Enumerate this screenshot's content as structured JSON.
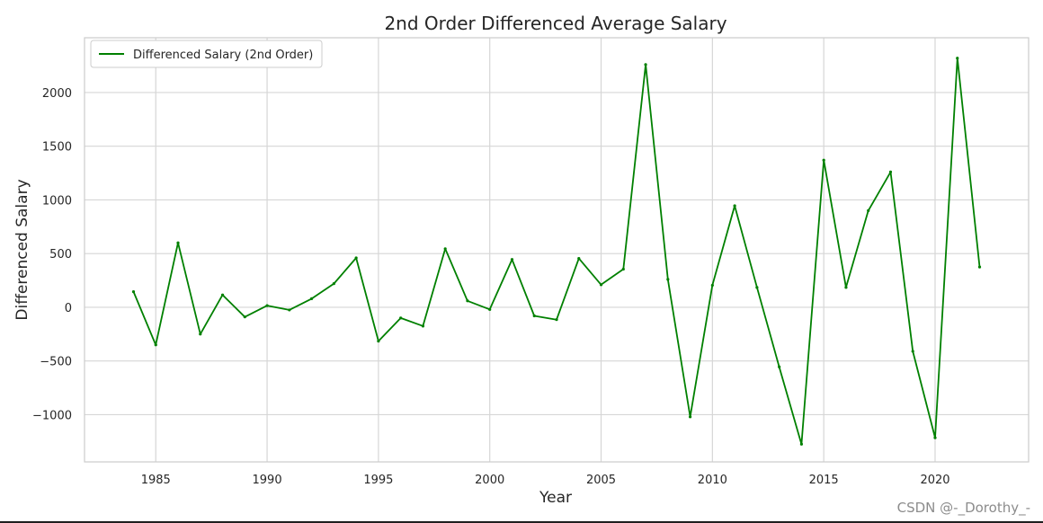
{
  "chart_data": {
    "type": "line",
    "title": "2nd Order Differenced Average Salary",
    "xlabel": "Year",
    "ylabel": "Differenced Salary",
    "xlim": [
      1981.8,
      2024.2
    ],
    "ylim": [
      -1440,
      2510
    ],
    "xticks": [
      1985,
      1990,
      1995,
      2000,
      2005,
      2010,
      2015,
      2020
    ],
    "yticks": [
      -1000,
      -500,
      0,
      500,
      1000,
      1500,
      2000
    ],
    "ytick_labels": [
      "−1000",
      "−500",
      "0",
      "500",
      "1000",
      "1500",
      "2000"
    ],
    "grid": true,
    "legend_position": "top-left",
    "series": [
      {
        "name": "Differenced Salary (2nd Order)",
        "color": "#008000",
        "x": [
          1984,
          1985,
          1986,
          1987,
          1988,
          1989,
          1990,
          1991,
          1992,
          1993,
          1994,
          1995,
          1996,
          1997,
          1998,
          1999,
          2000,
          2001,
          2002,
          2003,
          2004,
          2005,
          2006,
          2007,
          2008,
          2009,
          2010,
          2011,
          2012,
          2013,
          2014,
          2015,
          2016,
          2017,
          2018,
          2019,
          2020,
          2021,
          2022
        ],
        "y": [
          145,
          -350,
          600,
          -250,
          115,
          -90,
          15,
          -25,
          80,
          220,
          460,
          -315,
          -100,
          -175,
          545,
          60,
          -20,
          445,
          -80,
          -115,
          455,
          210,
          355,
          2260,
          260,
          -1020,
          205,
          945,
          185,
          -555,
          -1275,
          1370,
          185,
          900,
          1260,
          -410,
          -1215,
          2320,
          375
        ]
      }
    ]
  },
  "watermark": "CSDN @-_Dorothy_-"
}
